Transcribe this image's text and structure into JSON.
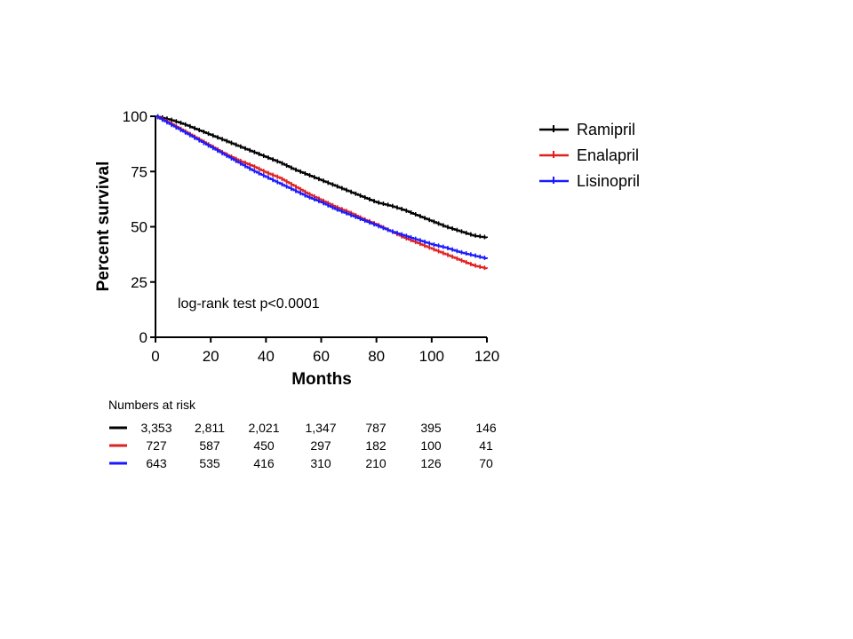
{
  "chart_data": {
    "type": "line",
    "title": "",
    "xlabel": "Months",
    "ylabel": "Percent survival",
    "xlim": [
      0,
      120
    ],
    "ylim": [
      0,
      100
    ],
    "x_ticks": [
      0,
      20,
      40,
      60,
      80,
      100,
      120
    ],
    "y_ticks": [
      0,
      25,
      50,
      75,
      100
    ],
    "grid": false,
    "legend_position": "right",
    "annotation": "log-rank test p<0.0001",
    "series": [
      {
        "name": "Ramipril",
        "color": "#000000",
        "x": [
          0,
          5,
          10,
          15,
          20,
          25,
          30,
          35,
          40,
          45,
          50,
          55,
          60,
          65,
          70,
          75,
          80,
          85,
          90,
          95,
          100,
          105,
          110,
          115,
          120
        ],
        "y": [
          100,
          98.5,
          96.5,
          94,
          91.5,
          89,
          86.5,
          84,
          81.5,
          79,
          76,
          73.5,
          71,
          68.5,
          66,
          63.5,
          61,
          59.5,
          57.5,
          55,
          52.5,
          50,
          48,
          46,
          45
        ]
      },
      {
        "name": "Enalapril",
        "color": "#e02020",
        "x": [
          0,
          5,
          10,
          15,
          20,
          25,
          30,
          35,
          40,
          45,
          50,
          55,
          60,
          65,
          70,
          75,
          80,
          85,
          90,
          95,
          100,
          105,
          110,
          115,
          120
        ],
        "y": [
          100,
          97,
          93.5,
          90,
          86.5,
          83,
          80,
          77.5,
          74.5,
          72,
          68.5,
          65,
          62,
          59,
          56.5,
          53.5,
          51,
          48,
          45,
          42.5,
          40,
          37.5,
          35,
          32.5,
          31
        ]
      },
      {
        "name": "Lisinopril",
        "color": "#1a1aff",
        "x": [
          0,
          5,
          10,
          15,
          20,
          25,
          30,
          35,
          40,
          45,
          50,
          55,
          60,
          65,
          70,
          75,
          80,
          85,
          90,
          95,
          100,
          105,
          110,
          115,
          120
        ],
        "y": [
          100,
          96.5,
          93,
          89.5,
          86,
          82.5,
          79,
          75.5,
          72.5,
          69.5,
          66.5,
          63.5,
          61,
          58,
          55.5,
          53,
          50.5,
          48,
          46,
          44,
          42,
          40.5,
          38.5,
          37,
          35.5
        ]
      }
    ],
    "numbers_at_risk": {
      "title": "Numbers at risk",
      "rows": [
        {
          "color": "#000000",
          "values": [
            "3,353",
            "2,811",
            "2,021",
            "1,347",
            "787",
            "395",
            "146"
          ]
        },
        {
          "color": "#e02020",
          "values": [
            "727",
            "587",
            "450",
            "297",
            "182",
            "100",
            "41"
          ]
        },
        {
          "color": "#1a1aff",
          "values": [
            "643",
            "535",
            "416",
            "310",
            "210",
            "126",
            "70"
          ]
        }
      ]
    }
  }
}
